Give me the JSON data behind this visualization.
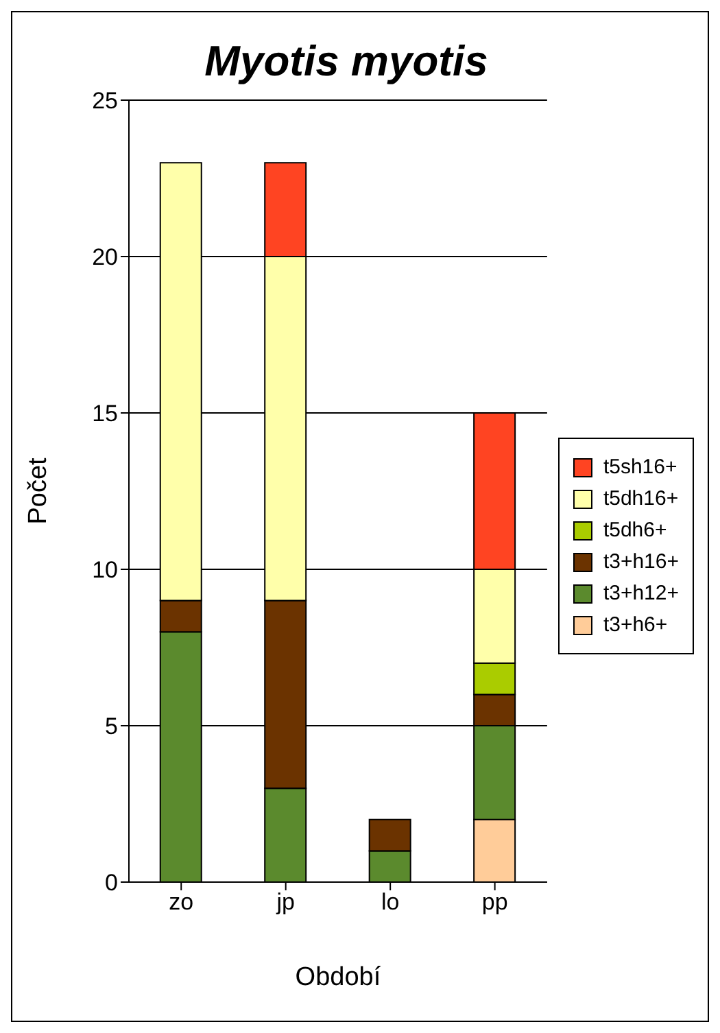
{
  "chart_data": {
    "type": "bar",
    "title": "Myotis myotis",
    "xlabel": "Období",
    "ylabel": "Počet",
    "categories": [
      "zo",
      "jp",
      "lo",
      "pp"
    ],
    "stacked": true,
    "ylim": [
      0,
      25
    ],
    "yticks": [
      0,
      5,
      10,
      15,
      20,
      25
    ],
    "grid": "y",
    "legend": "right",
    "series": [
      {
        "name": "t3+h6+",
        "color": "#ffcc99",
        "values": [
          null,
          null,
          null,
          2
        ]
      },
      {
        "name": "t3+h12+",
        "color": "#5b8a2d",
        "values": [
          8,
          3,
          1,
          3
        ]
      },
      {
        "name": "t3+h16+",
        "color": "#6b3300",
        "values": [
          1,
          6,
          1,
          1
        ]
      },
      {
        "name": "t5dh6+",
        "color": "#aacc00",
        "values": [
          null,
          null,
          null,
          1
        ]
      },
      {
        "name": "t5dh16+",
        "color": "#ffffaa",
        "values": [
          14,
          11,
          null,
          3
        ]
      },
      {
        "name": "t5sh16+",
        "color": "#ff4422",
        "values": [
          null,
          3,
          null,
          5
        ]
      }
    ]
  }
}
